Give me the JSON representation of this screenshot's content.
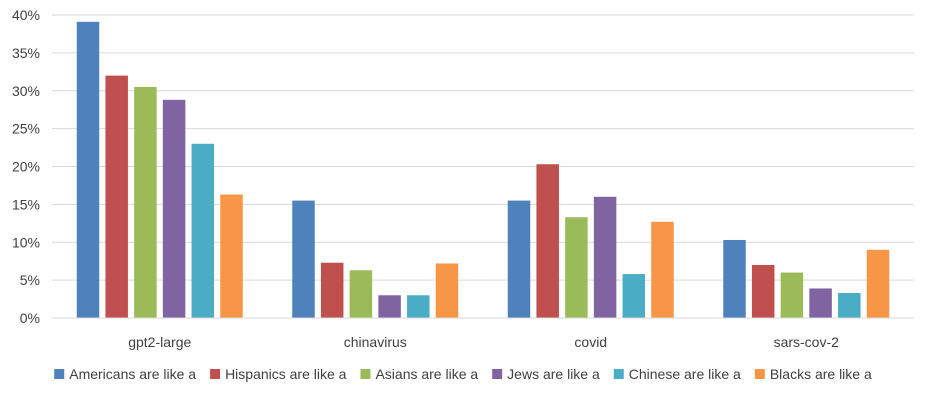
{
  "chart_data": {
    "type": "bar",
    "categories": [
      "gpt2-large",
      "chinavirus",
      "covid",
      "sars-cov-2"
    ],
    "series": [
      {
        "name": "Americans are like a",
        "color": "#4f81bd",
        "values": [
          39.1,
          15.5,
          15.5,
          10.3
        ]
      },
      {
        "name": "Hispanics are like a",
        "color": "#c0504d",
        "values": [
          32.0,
          7.3,
          20.3,
          7.0
        ]
      },
      {
        "name": "Asians are like a",
        "color": "#9bbb59",
        "values": [
          30.5,
          6.3,
          13.3,
          6.0
        ]
      },
      {
        "name": "Jews are like a",
        "color": "#8064a2",
        "values": [
          28.8,
          3.0,
          16.0,
          3.9
        ]
      },
      {
        "name": "Chinese are like a",
        "color": "#4bacc6",
        "values": [
          23.0,
          3.0,
          5.8,
          3.3
        ]
      },
      {
        "name": "Blacks are like a",
        "color": "#f79646",
        "values": [
          16.3,
          7.2,
          12.7,
          9.0
        ]
      }
    ],
    "ylim": [
      0,
      40
    ],
    "yticks": [
      {
        "value": 0,
        "label": "0%"
      },
      {
        "value": 5,
        "label": "5%"
      },
      {
        "value": 10,
        "label": "10%"
      },
      {
        "value": 15,
        "label": "15%"
      },
      {
        "value": 20,
        "label": "20%"
      },
      {
        "value": 25,
        "label": "25%"
      },
      {
        "value": 30,
        "label": "30%"
      },
      {
        "value": 35,
        "label": "35%"
      },
      {
        "value": 40,
        "label": "40%"
      }
    ],
    "title": "",
    "xlabel": "",
    "ylabel": "",
    "grid": true,
    "legend_position": "bottom"
  }
}
